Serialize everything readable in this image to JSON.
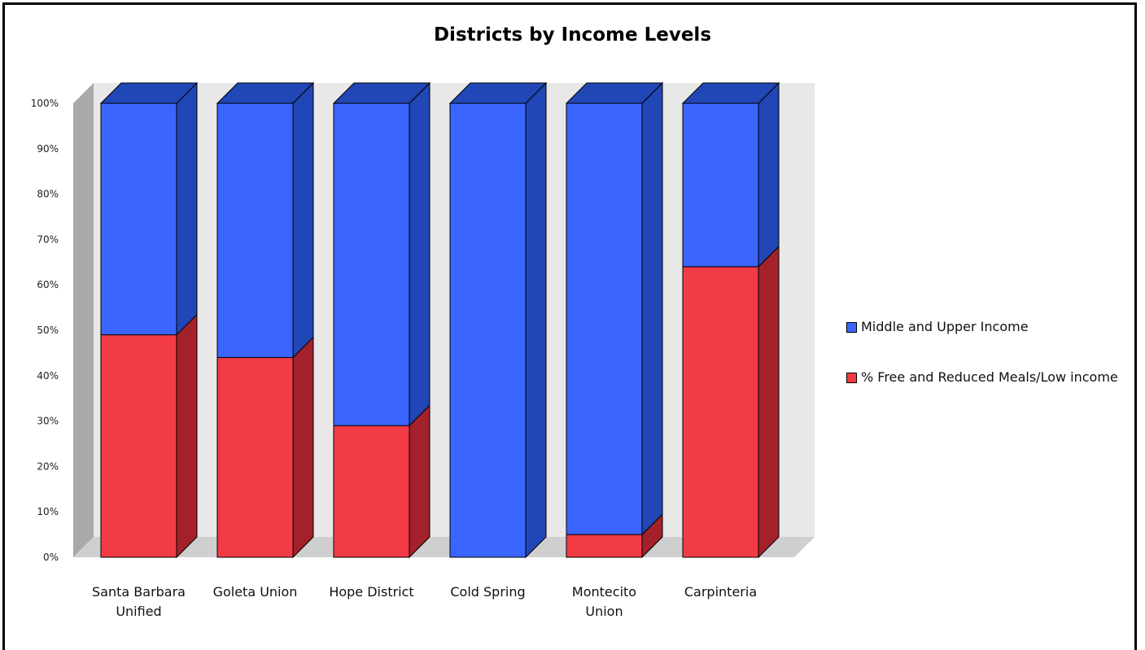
{
  "chart_data": {
    "type": "bar",
    "stacked": true,
    "three_d": true,
    "title": "Districts by Income Levels",
    "categories": [
      "Santa Barbara Unified",
      "Goleta Union",
      "Hope District",
      "Cold Spring",
      "Montecito Union",
      "Carpinteria"
    ],
    "category_lines": [
      [
        "Santa Barbara",
        "Unified"
      ],
      [
        "Goleta Union"
      ],
      [
        "Hope District"
      ],
      [
        "Cold Spring"
      ],
      [
        "Montecito",
        "Union"
      ],
      [
        "Carpinteria"
      ]
    ],
    "series": [
      {
        "name": "% Free and Reduced Meals/Low income",
        "values": [
          49,
          44,
          29,
          0,
          5,
          64
        ],
        "color": "#f33b45",
        "side_color": "#a3212b"
      },
      {
        "name": "Middle and Upper Income",
        "values": [
          51,
          56,
          71,
          100,
          95,
          36
        ],
        "color": "#3b65ff",
        "side_color": "#2146b5"
      }
    ],
    "ylim": [
      0,
      100
    ],
    "yticks": [
      "0%",
      "10%",
      "20%",
      "30%",
      "40%",
      "50%",
      "60%",
      "70%",
      "80%",
      "90%",
      "100%"
    ],
    "legend_order": [
      "Middle and Upper Income",
      "% Free and Reduced Meals/Low income"
    ],
    "legend_position": "right",
    "grid": false
  }
}
